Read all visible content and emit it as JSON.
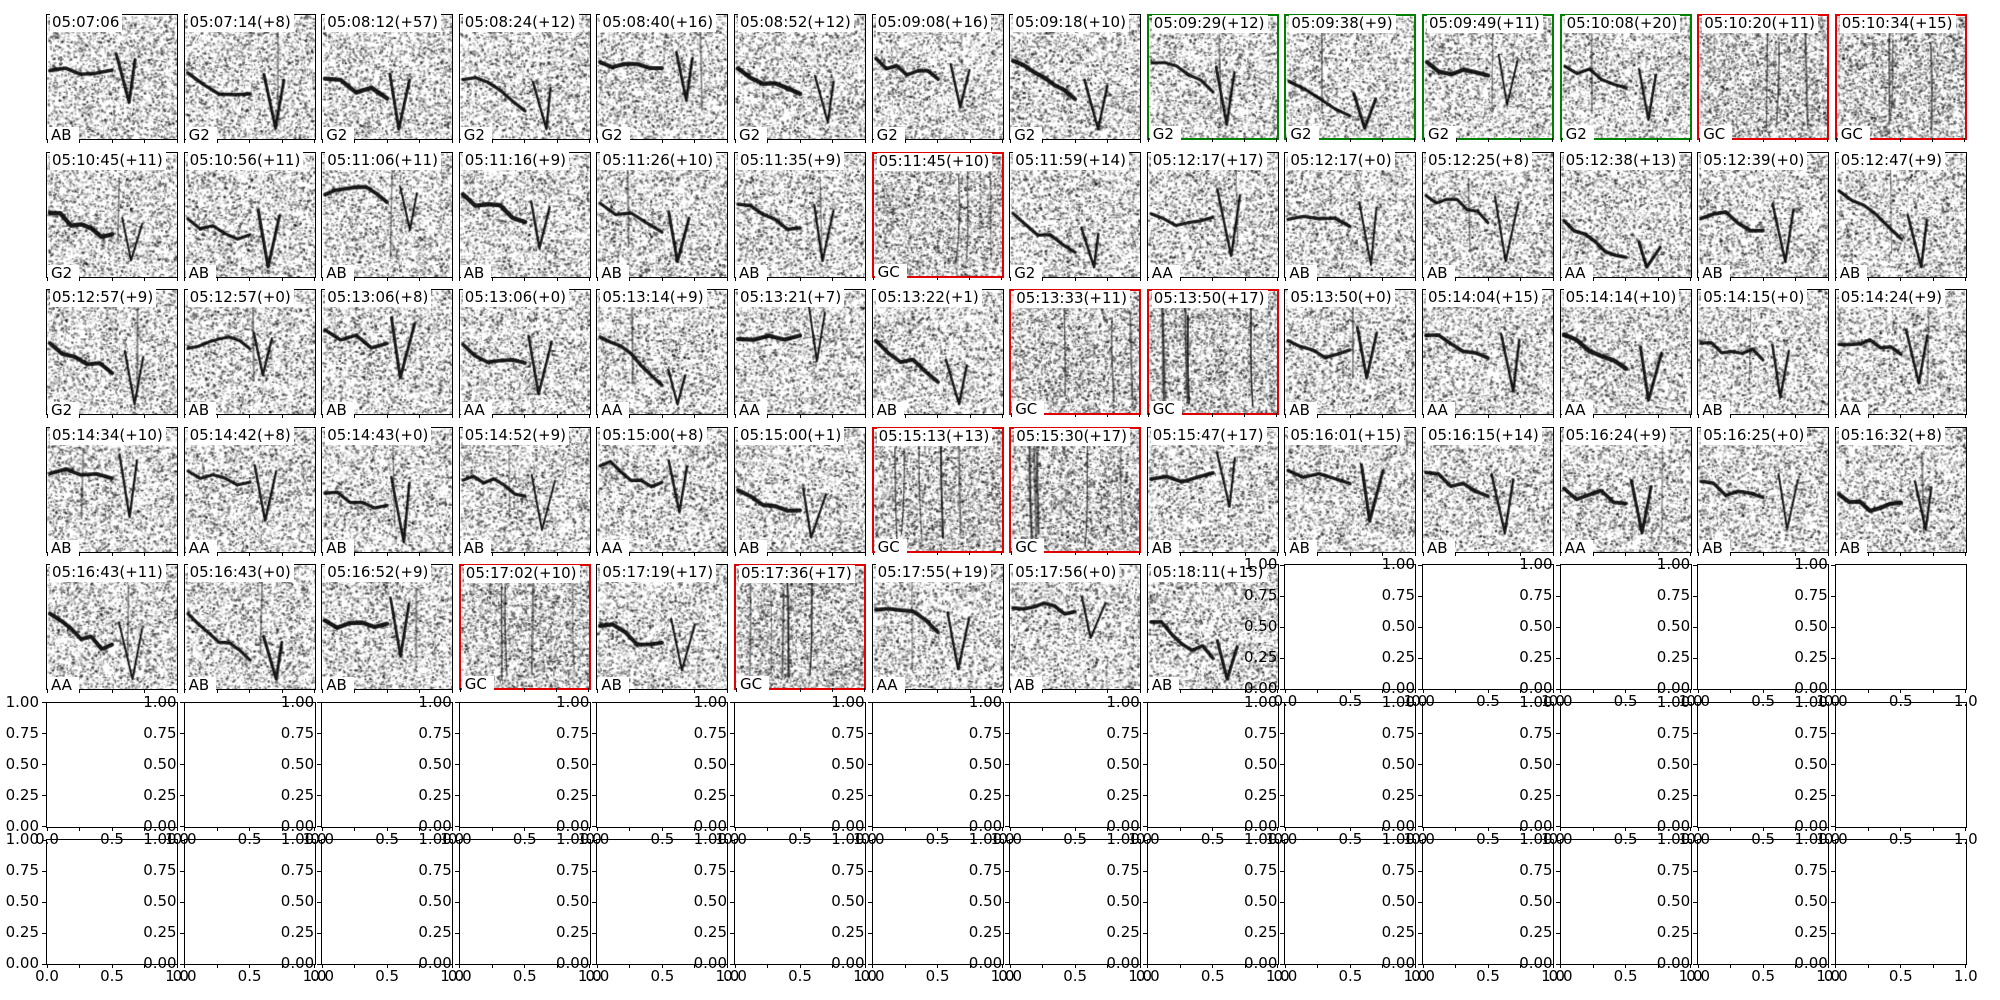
{
  "chart_data": {
    "type": "heatmap",
    "description": "Grid of 65 spectrogram thumbnails (7x14 subplot grid; last 33 subplots are empty 0-1 axes). Each thumbnail has a timestamp title with optional (+seconds) offset, a call-type label at bottom-left, and a black/green/red frame.",
    "grid": {
      "cols": 14,
      "rows": 7,
      "spectrogram_count": 65,
      "row5_spectrograms": 9,
      "empty_axes_count": 33
    },
    "border_colors": {
      "black": "#000000",
      "green": "#008000",
      "red": "#e00000"
    },
    "cells": [
      {
        "title": "05:07:06",
        "label": "AB",
        "border": "black"
      },
      {
        "title": "05:07:14(+8)",
        "label": "G2",
        "border": "black"
      },
      {
        "title": "05:08:12(+57)",
        "label": "G2",
        "border": "black"
      },
      {
        "title": "05:08:24(+12)",
        "label": "G2",
        "border": "black"
      },
      {
        "title": "05:08:40(+16)",
        "label": "G2",
        "border": "black"
      },
      {
        "title": "05:08:52(+12)",
        "label": "G2",
        "border": "black"
      },
      {
        "title": "05:09:08(+16)",
        "label": "G2",
        "border": "black"
      },
      {
        "title": "05:09:18(+10)",
        "label": "G2",
        "border": "black"
      },
      {
        "title": "05:09:29(+12)",
        "label": "G2",
        "border": "green"
      },
      {
        "title": "05:09:38(+9)",
        "label": "G2",
        "border": "green"
      },
      {
        "title": "05:09:49(+11)",
        "label": "G2",
        "border": "green"
      },
      {
        "title": "05:10:08(+20)",
        "label": "G2",
        "border": "green"
      },
      {
        "title": "05:10:20(+11)",
        "label": "GC",
        "border": "red"
      },
      {
        "title": "05:10:34(+15)",
        "label": "GC",
        "border": "red"
      },
      {
        "title": "05:10:45(+11)",
        "label": "G2",
        "border": "black"
      },
      {
        "title": "05:10:56(+11)",
        "label": "AB",
        "border": "black"
      },
      {
        "title": "05:11:06(+11)",
        "label": "AB",
        "border": "black"
      },
      {
        "title": "05:11:16(+9)",
        "label": "AB",
        "border": "black"
      },
      {
        "title": "05:11:26(+10)",
        "label": "AB",
        "border": "black"
      },
      {
        "title": "05:11:35(+9)",
        "label": "AB",
        "border": "black"
      },
      {
        "title": "05:11:45(+10)",
        "label": "GC",
        "border": "red"
      },
      {
        "title": "05:11:59(+14)",
        "label": "G2",
        "border": "black"
      },
      {
        "title": "05:12:17(+17)",
        "label": "AA",
        "border": "black"
      },
      {
        "title": "05:12:17(+0)",
        "label": "AB",
        "border": "black"
      },
      {
        "title": "05:12:25(+8)",
        "label": "AB",
        "border": "black"
      },
      {
        "title": "05:12:38(+13)",
        "label": "AA",
        "border": "black"
      },
      {
        "title": "05:12:39(+0)",
        "label": "AB",
        "border": "black"
      },
      {
        "title": "05:12:47(+9)",
        "label": "AB",
        "border": "black"
      },
      {
        "title": "05:12:57(+9)",
        "label": "G2",
        "border": "black"
      },
      {
        "title": "05:12:57(+0)",
        "label": "AB",
        "border": "black"
      },
      {
        "title": "05:13:06(+8)",
        "label": "AB",
        "border": "black"
      },
      {
        "title": "05:13:06(+0)",
        "label": "AA",
        "border": "black"
      },
      {
        "title": "05:13:14(+9)",
        "label": "AA",
        "border": "black"
      },
      {
        "title": "05:13:21(+7)",
        "label": "AA",
        "border": "black"
      },
      {
        "title": "05:13:22(+1)",
        "label": "AB",
        "border": "black"
      },
      {
        "title": "05:13:33(+11)",
        "label": "GC",
        "border": "red"
      },
      {
        "title": "05:13:50(+17)",
        "label": "GC",
        "border": "red"
      },
      {
        "title": "05:13:50(+0)",
        "label": "AB",
        "border": "black"
      },
      {
        "title": "05:14:04(+15)",
        "label": "AA",
        "border": "black"
      },
      {
        "title": "05:14:14(+10)",
        "label": "AA",
        "border": "black"
      },
      {
        "title": "05:14:15(+0)",
        "label": "AB",
        "border": "black"
      },
      {
        "title": "05:14:24(+9)",
        "label": "AA",
        "border": "black"
      },
      {
        "title": "05:14:34(+10)",
        "label": "AB",
        "border": "black"
      },
      {
        "title": "05:14:42(+8)",
        "label": "AA",
        "border": "black"
      },
      {
        "title": "05:14:43(+0)",
        "label": "AB",
        "border": "black"
      },
      {
        "title": "05:14:52(+9)",
        "label": "AB",
        "border": "black"
      },
      {
        "title": "05:15:00(+8)",
        "label": "AA",
        "border": "black"
      },
      {
        "title": "05:15:00(+1)",
        "label": "AB",
        "border": "black"
      },
      {
        "title": "05:15:13(+13)",
        "label": "GC",
        "border": "red"
      },
      {
        "title": "05:15:30(+17)",
        "label": "GC",
        "border": "red"
      },
      {
        "title": "05:15:47(+17)",
        "label": "AB",
        "border": "black"
      },
      {
        "title": "05:16:01(+15)",
        "label": "AB",
        "border": "black"
      },
      {
        "title": "05:16:15(+14)",
        "label": "AB",
        "border": "black"
      },
      {
        "title": "05:16:24(+9)",
        "label": "AA",
        "border": "black"
      },
      {
        "title": "05:16:25(+0)",
        "label": "AB",
        "border": "black"
      },
      {
        "title": "05:16:32(+8)",
        "label": "AB",
        "border": "black"
      },
      {
        "title": "05:16:43(+11)",
        "label": "AA",
        "border": "black"
      },
      {
        "title": "05:16:43(+0)",
        "label": "AB",
        "border": "black"
      },
      {
        "title": "05:16:52(+9)",
        "label": "AB",
        "border": "black"
      },
      {
        "title": "05:17:02(+10)",
        "label": "GC",
        "border": "red"
      },
      {
        "title": "05:17:19(+17)",
        "label": "AB",
        "border": "black"
      },
      {
        "title": "05:17:36(+17)",
        "label": "GC",
        "border": "red"
      },
      {
        "title": "05:17:55(+19)",
        "label": "AA",
        "border": "black"
      },
      {
        "title": "05:17:56(+0)",
        "label": "AB",
        "border": "black"
      },
      {
        "title": "05:18:11(+15)",
        "label": "AB",
        "border": "black"
      }
    ],
    "empty_axes": {
      "ylim": [
        0,
        1
      ],
      "xlim": [
        0,
        1
      ],
      "yticks": [
        "1.00",
        "0.75",
        "0.50",
        "0.25",
        "0.00"
      ],
      "xticks": [
        "0.0",
        "0.5",
        "1.0"
      ]
    }
  }
}
